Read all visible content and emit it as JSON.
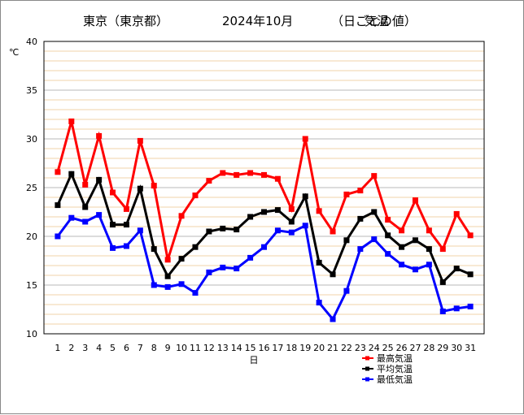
{
  "chart_data": {
    "type": "line",
    "title": "東京（東京都） 2024年10月 （日ごとの値） 気温",
    "title_parts": [
      "東京（東京都）",
      "2024年10月",
      "（日ごとの値）",
      "気温"
    ],
    "xlabel": "日",
    "ylabel": "℃",
    "ylim": [
      10,
      40
    ],
    "y_ticks": [
      10,
      15,
      20,
      25,
      30,
      35,
      40
    ],
    "y_minor_step": 1,
    "grid": true,
    "legend_position": "bottom-right",
    "x": [
      1,
      2,
      3,
      4,
      5,
      6,
      7,
      8,
      9,
      10,
      11,
      12,
      13,
      14,
      15,
      16,
      17,
      18,
      19,
      20,
      21,
      22,
      23,
      24,
      25,
      26,
      27,
      28,
      29,
      30,
      31
    ],
    "series": [
      {
        "name": "最高気温",
        "color": "#ff0000",
        "values": [
          26.6,
          31.8,
          25.3,
          30.3,
          24.5,
          22.8,
          29.8,
          25.2,
          17.6,
          22.1,
          24.2,
          25.7,
          26.5,
          26.3,
          26.5,
          26.3,
          25.9,
          22.8,
          30.0,
          22.6,
          20.5,
          24.3,
          24.7,
          26.2,
          21.7,
          20.6,
          23.7,
          20.6,
          18.7,
          22.3,
          20.1
        ]
      },
      {
        "name": "平均気温",
        "color": "#000000",
        "values": [
          23.2,
          26.4,
          23.0,
          25.8,
          21.2,
          21.2,
          24.9,
          18.7,
          15.9,
          17.7,
          18.9,
          20.5,
          20.8,
          20.7,
          22.0,
          22.5,
          22.7,
          21.5,
          24.1,
          17.3,
          16.1,
          19.6,
          21.8,
          22.5,
          20.1,
          18.9,
          19.6,
          18.7,
          15.3,
          16.7,
          16.1
        ]
      },
      {
        "name": "最低気温",
        "color": "#0000ff",
        "values": [
          20.0,
          21.9,
          21.5,
          22.2,
          18.8,
          19.0,
          20.6,
          15.0,
          14.8,
          15.1,
          14.2,
          16.3,
          16.8,
          16.7,
          17.8,
          18.9,
          20.6,
          20.4,
          21.1,
          13.2,
          11.5,
          14.4,
          18.7,
          19.7,
          18.2,
          17.1,
          16.6,
          17.1,
          12.3,
          12.6,
          12.8
        ]
      }
    ]
  }
}
